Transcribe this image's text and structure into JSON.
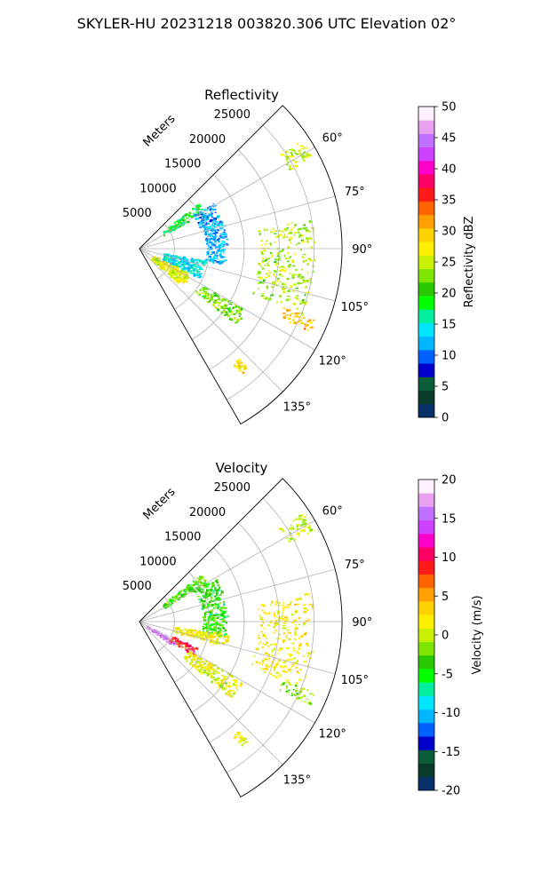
{
  "figure": {
    "suptitle": "SKYLER-HU  20231218  003820.306 UTC Elevation 02°"
  },
  "chart_data": [
    {
      "type": "polar-sector-heatmap",
      "title": "Reflectivity",
      "rlabel": "Meters",
      "r_ticks": [
        "5000",
        "10000",
        "15000",
        "20000",
        "25000"
      ],
      "r_tick_values": [
        5000,
        10000,
        15000,
        20000,
        25000
      ],
      "r_max": 29000,
      "theta_range_deg": [
        45,
        150
      ],
      "theta_ticks": [
        "60°",
        "75°",
        "90°",
        "105°",
        "120°",
        "135°"
      ],
      "theta_tick_values": [
        60,
        75,
        90,
        105,
        120,
        135
      ],
      "grid": true,
      "colorbar": {
        "label": "Reflectivity dBZ",
        "ticks": [
          "0",
          "5",
          "10",
          "15",
          "20",
          "25",
          "30",
          "35",
          "40",
          "45",
          "50"
        ],
        "vmin": 0,
        "vmax": 50,
        "stops": [
          "#08306b",
          "#0a3a2a",
          "#0b5d3a",
          "#0000cd",
          "#0061ff",
          "#00b7ff",
          "#00e5ff",
          "#00f0a0",
          "#00ff00",
          "#2ac800",
          "#7de600",
          "#c8f000",
          "#fff000",
          "#ffd200",
          "#ffa000",
          "#ff6400",
          "#ff1a1a",
          "#ff0064",
          "#ff00c8",
          "#d040ff",
          "#c070ff",
          "#e8a0f0",
          "#fff0ff"
        ]
      },
      "echo_regions": [
        {
          "theta_deg": [
            52,
            60
          ],
          "r_m": [
            4000,
            11000
          ],
          "dbz": 18
        },
        {
          "theta_deg": [
            58,
            70
          ],
          "r_m": [
            9000,
            12500
          ],
          "dbz": 11
        },
        {
          "theta_deg": [
            70,
            100
          ],
          "r_m": [
            9500,
            12500
          ],
          "dbz": 12
        },
        {
          "theta_deg": [
            100,
            116
          ],
          "r_m": [
            3500,
            9500
          ],
          "dbz": 14
        },
        {
          "theta_deg": [
            116,
            132
          ],
          "r_m": [
            2000,
            8000
          ],
          "dbz": 26
        },
        {
          "theta_deg": [
            120,
            128
          ],
          "r_m": [
            10000,
            17500
          ],
          "dbz": 22
        },
        {
          "theta_deg": [
            80,
            112
          ],
          "r_m": [
            17000,
            25000
          ],
          "dbz": 24
        },
        {
          "theta_deg": [
            112,
            116
          ],
          "r_m": [
            22000,
            27000
          ],
          "dbz": 30
        },
        {
          "theta_deg": [
            56,
            62
          ],
          "r_m": [
            24000,
            28000
          ],
          "dbz": 25
        },
        {
          "theta_deg": [
            138,
            141
          ],
          "r_m": [
            21000,
            23000
          ],
          "dbz": 28
        }
      ]
    },
    {
      "type": "polar-sector-heatmap",
      "title": "Velocity",
      "rlabel": "Meters",
      "r_ticks": [
        "5000",
        "10000",
        "15000",
        "20000",
        "25000"
      ],
      "r_tick_values": [
        5000,
        10000,
        15000,
        20000,
        25000
      ],
      "r_max": 29000,
      "theta_range_deg": [
        45,
        150
      ],
      "theta_ticks": [
        "60°",
        "75°",
        "90°",
        "105°",
        "120°",
        "135°"
      ],
      "theta_tick_values": [
        60,
        75,
        90,
        105,
        120,
        135
      ],
      "grid": true,
      "colorbar": {
        "label": "Velocity (m/s)",
        "ticks": [
          "-20",
          "-15",
          "-10",
          "-5",
          "0",
          "5",
          "10",
          "15",
          "20"
        ],
        "vmin": -20,
        "vmax": 20,
        "stops": [
          "#08306b",
          "#0a3a2a",
          "#0b5d3a",
          "#0000cd",
          "#0061ff",
          "#00b7ff",
          "#00e5ff",
          "#00f0a0",
          "#00ff00",
          "#2ac800",
          "#7de600",
          "#c8f000",
          "#fff000",
          "#ffd200",
          "#ffa000",
          "#ff6400",
          "#ff1a1a",
          "#ff0064",
          "#ff00c8",
          "#d040ff",
          "#c070ff",
          "#e8a0f0",
          "#fff0ff"
        ]
      },
      "echo_regions": [
        {
          "theta_deg": [
            52,
            60
          ],
          "r_m": [
            4000,
            11000
          ],
          "vel": -3
        },
        {
          "theta_deg": [
            60,
            100
          ],
          "r_m": [
            9000,
            12500
          ],
          "vel": -4
        },
        {
          "theta_deg": [
            98,
            106
          ],
          "r_m": [
            5000,
            13000
          ],
          "vel": 2
        },
        {
          "theta_deg": [
            117,
            126
          ],
          "r_m": [
            1000,
            6000
          ],
          "vel": 16
        },
        {
          "theta_deg": [
            114,
            122
          ],
          "r_m": [
            5000,
            9000
          ],
          "vel": 9
        },
        {
          "theta_deg": [
            120,
            130
          ],
          "r_m": [
            8000,
            17000
          ],
          "vel": 1
        },
        {
          "theta_deg": [
            80,
            112
          ],
          "r_m": [
            17000,
            25000
          ],
          "vel": 2
        },
        {
          "theta_deg": [
            112,
            116
          ],
          "r_m": [
            22000,
            27000
          ],
          "vel": -2
        },
        {
          "theta_deg": [
            56,
            62
          ],
          "r_m": [
            24000,
            28000
          ],
          "vel": 0
        },
        {
          "theta_deg": [
            138,
            141
          ],
          "r_m": [
            21000,
            23000
          ],
          "vel": 1
        }
      ]
    }
  ]
}
